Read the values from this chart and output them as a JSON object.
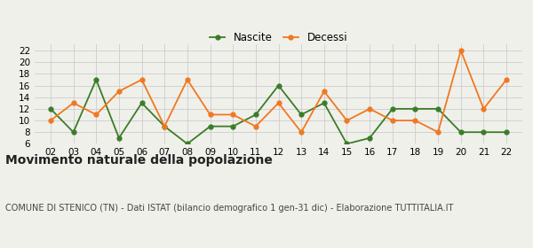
{
  "years": [
    2,
    3,
    4,
    5,
    6,
    7,
    8,
    9,
    10,
    11,
    12,
    13,
    14,
    15,
    16,
    17,
    18,
    19,
    20,
    21,
    22
  ],
  "nascite": [
    12,
    8,
    17,
    7,
    13,
    9,
    6,
    9,
    9,
    11,
    16,
    11,
    13,
    6,
    7,
    12,
    12,
    12,
    8,
    8,
    8
  ],
  "decessi": [
    10,
    13,
    11,
    15,
    17,
    9,
    17,
    11,
    11,
    9,
    13,
    8,
    15,
    10,
    12,
    10,
    10,
    8,
    22,
    12,
    17
  ],
  "nascite_color": "#3a7d27",
  "decessi_color": "#f07820",
  "background_color": "#f0f0eb",
  "grid_color": "#cccccc",
  "ylim": [
    6,
    23
  ],
  "yticks": [
    6,
    8,
    10,
    12,
    14,
    16,
    18,
    20,
    22
  ],
  "title": "Movimento naturale della popolazione",
  "subtitle": "COMUNE DI STENICO (TN) - Dati ISTAT (bilancio demografico 1 gen-31 dic) - Elaborazione TUTTITALIA.IT",
  "legend_nascite": "Nascite",
  "legend_decessi": "Decessi",
  "title_fontsize": 10,
  "subtitle_fontsize": 7,
  "tick_fontsize": 7.5,
  "legend_fontsize": 8.5,
  "linewidth": 1.3,
  "markersize": 3.5
}
